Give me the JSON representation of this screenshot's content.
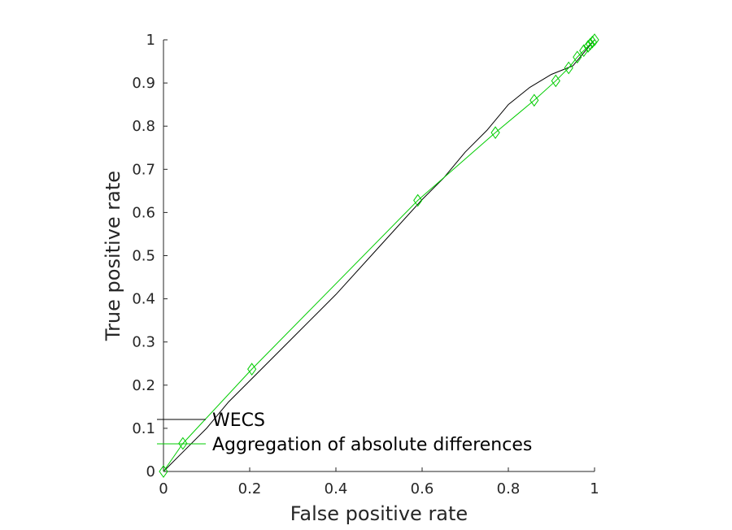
{
  "chart_data": {
    "type": "line",
    "xlabel": "False positive rate",
    "ylabel": "True positive rate",
    "xlim": [
      0,
      1
    ],
    "ylim": [
      0,
      1
    ],
    "x_ticks": [
      "0",
      "0.2",
      "0.4",
      "0.6",
      "0.8",
      "1"
    ],
    "y_ticks": [
      "0",
      "0.1",
      "0.2",
      "0.3",
      "0.4",
      "0.5",
      "0.6",
      "0.7",
      "0.8",
      "0.9",
      "1"
    ],
    "grid": false,
    "legend_position": "bottom-left",
    "series": [
      {
        "name": "WECS",
        "color": "#000000",
        "marker": "none",
        "x": [
          0,
          0.05,
          0.1,
          0.15,
          0.2,
          0.3,
          0.4,
          0.5,
          0.6,
          0.65,
          0.7,
          0.75,
          0.8,
          0.85,
          0.9,
          0.95,
          1
        ],
        "y": [
          0,
          0.05,
          0.1,
          0.16,
          0.21,
          0.31,
          0.41,
          0.52,
          0.63,
          0.68,
          0.74,
          0.79,
          0.85,
          0.89,
          0.92,
          0.94,
          1
        ]
      },
      {
        "name": "Aggregation of absolute differences",
        "color": "#00cc00",
        "marker": "diamond",
        "x": [
          0,
          0.045,
          0.205,
          0.59,
          0.77,
          0.86,
          0.91,
          0.94,
          0.96,
          0.975,
          0.985,
          0.99,
          0.995,
          1
        ],
        "y": [
          0,
          0.065,
          0.237,
          0.628,
          0.785,
          0.86,
          0.905,
          0.935,
          0.96,
          0.975,
          0.985,
          0.99,
          0.995,
          1
        ]
      }
    ]
  }
}
